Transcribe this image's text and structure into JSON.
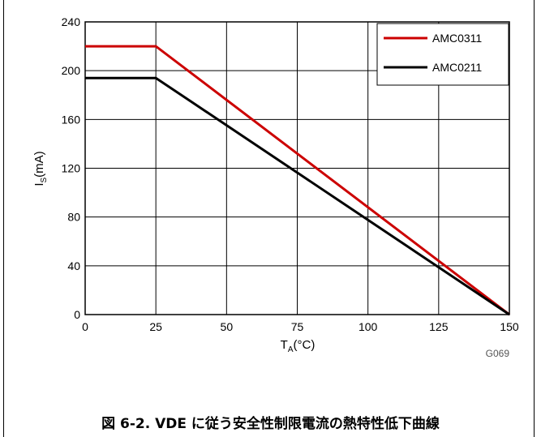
{
  "chart_data": {
    "type": "line",
    "xlabel_main": "T",
    "xlabel_sub": "A",
    "xlabel_unit": "(°C)",
    "ylabel_main": "I",
    "ylabel_sub": "S",
    "ylabel_unit": "(mA)",
    "xlim": [
      0,
      150
    ],
    "ylim": [
      0,
      240
    ],
    "x_ticks": [
      "0",
      "25",
      "50",
      "75",
      "100",
      "125",
      "150"
    ],
    "y_ticks": [
      "0",
      "40",
      "80",
      "120",
      "160",
      "200",
      "240"
    ],
    "grid": true,
    "legend_position": "top-right",
    "series": [
      {
        "name": "AMC0311",
        "color": "#cc0000",
        "x": [
          0,
          25,
          150
        ],
        "y": [
          220,
          220,
          0
        ]
      },
      {
        "name": "AMC0211",
        "color": "#000000",
        "x": [
          0,
          25,
          150
        ],
        "y": [
          194,
          194,
          0
        ]
      }
    ],
    "figure_id": "G069"
  },
  "caption": "図 6-2. VDE に従う安全性制限電流の熱特性低下曲線"
}
